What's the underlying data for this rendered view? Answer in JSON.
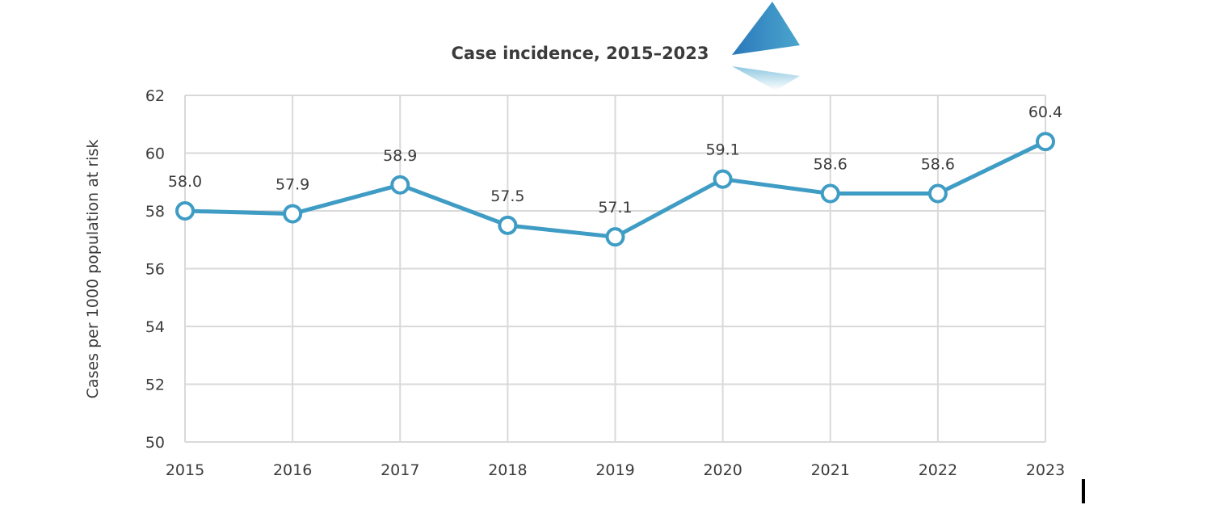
{
  "chart_data": {
    "type": "line",
    "title": "Case incidence, 2015–2023",
    "xlabel": "",
    "ylabel": "Cases per 1000 population at risk",
    "categories": [
      "2015",
      "2016",
      "2017",
      "2018",
      "2019",
      "2020",
      "2021",
      "2022",
      "2023"
    ],
    "series": [
      {
        "name": "Case incidence",
        "values": [
          58.0,
          57.9,
          58.9,
          57.5,
          57.1,
          59.1,
          58.6,
          58.6,
          60.4
        ],
        "labels": [
          "58.0",
          "57.9",
          "58.9",
          "57.5",
          "57.1",
          "59.1",
          "58.6",
          "58.6",
          "60.4"
        ],
        "color": "#3f9cc4"
      }
    ],
    "ylim": [
      50,
      62
    ],
    "yticks": [
      "50",
      "52",
      "54",
      "56",
      "58",
      "60",
      "62"
    ],
    "grid": true,
    "legend": "none"
  },
  "colors": {
    "line": "#3f9cc4",
    "grid": "#d9d9d9",
    "text": "#3b3b3b",
    "logo_top": "#2e7fbf",
    "logo_bottom": "#8ccbe0"
  },
  "logo": {
    "icon": "triangle-logo-icon"
  }
}
